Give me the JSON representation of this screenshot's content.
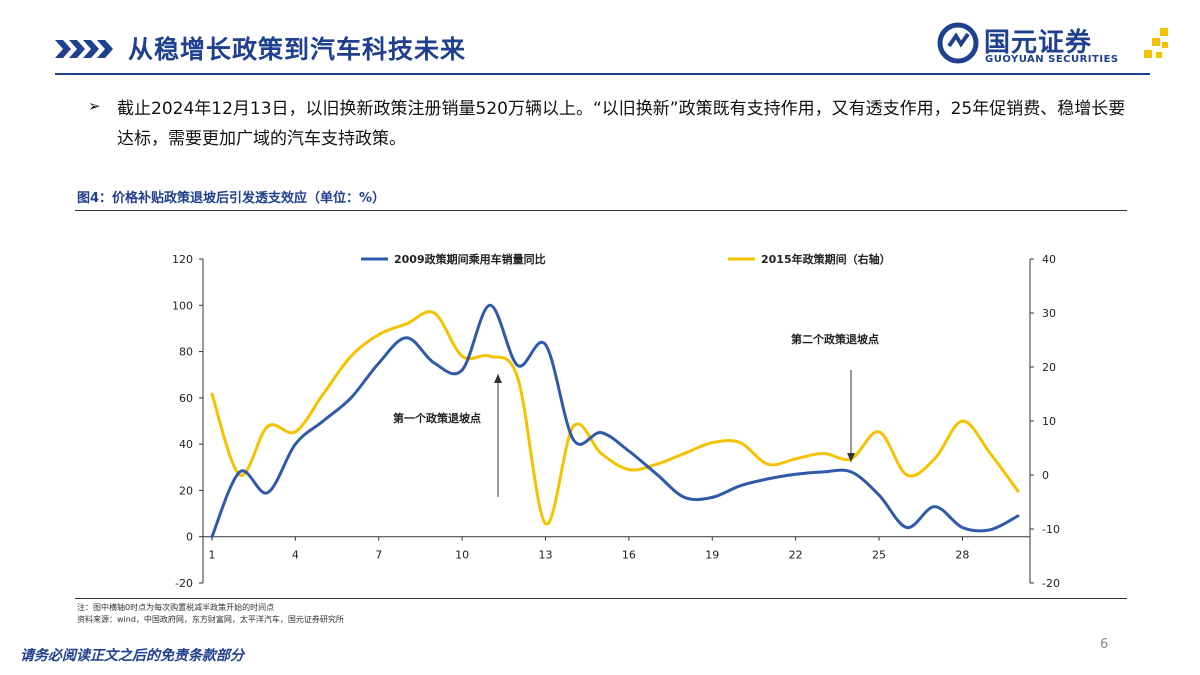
{
  "header": {
    "title": "从稳增长政策到汽车科技未来",
    "logo_cn": "国元证券",
    "logo_en": "GUOYUAN SECURITIES"
  },
  "body": {
    "bullet_glyph": "➢",
    "text": "截止2024年12月13日，以旧换新政策注册销量520万辆以上。“以旧换新”政策既有支持作用，又有透支作用，25年促销费、稳增长要达标，需要更加广域的汽车支持政策。"
  },
  "figure": {
    "title": "图4：价格补贴政策退坡后引发透支效应（单位：%）",
    "note": "注：图中横轴0时点为每次购置税减半政策开始的时间点",
    "source": "资料来源：wind，中国政府网，东方财富网，太平洋汽车，国元证券研究所"
  },
  "footer": {
    "disclaimer": "请务必阅读正文之后的免责条款部分",
    "page_number": "6"
  },
  "colors": {
    "brand_blue": "#1f3f8f",
    "series_2009": "#2e5aa8",
    "series_2015": "#f5c200"
  },
  "chart_data": {
    "type": "line",
    "x": [
      1,
      2,
      3,
      4,
      5,
      6,
      7,
      8,
      9,
      10,
      11,
      12,
      13,
      14,
      15,
      16,
      17,
      18,
      19,
      20,
      21,
      22,
      23,
      24,
      25,
      26,
      27,
      28,
      29,
      30
    ],
    "x_ticks": [
      1,
      4,
      7,
      10,
      13,
      16,
      19,
      22,
      25,
      28
    ],
    "ylim": [
      -20,
      120
    ],
    "y_ticks": [
      -20,
      0,
      20,
      40,
      60,
      80,
      100,
      120
    ],
    "y2lim": [
      -20,
      40
    ],
    "y2_ticks": [
      -20,
      -10,
      0,
      10,
      20,
      30,
      40
    ],
    "grid": false,
    "legend_position": "top",
    "series": [
      {
        "name": "2009政策期间乘用车销量同比",
        "axis": "left",
        "color": "#2e5aa8",
        "values": [
          0,
          28,
          19,
          40,
          50,
          60,
          75,
          86,
          75,
          72,
          100,
          74,
          83,
          42,
          45,
          37,
          27,
          17,
          17,
          22,
          25,
          27,
          28,
          28,
          18,
          4,
          13,
          4,
          3,
          9
        ]
      },
      {
        "name": "2015年政策期间（右轴）",
        "axis": "right",
        "color": "#f5c200",
        "values": [
          15,
          0,
          9,
          8,
          15,
          22,
          26,
          28,
          30,
          22,
          22,
          18,
          -9,
          9,
          4,
          1,
          2,
          4,
          6,
          6,
          2,
          3,
          4,
          3,
          8,
          0,
          3,
          10,
          4,
          -3
        ]
      }
    ],
    "annotations": [
      {
        "text": "第一个政策退坡点",
        "x": 11,
        "arrow_to_y": 72
      },
      {
        "text": "第二个政策退坡点",
        "x": 24,
        "arrow_to_y": 29
      }
    ]
  }
}
